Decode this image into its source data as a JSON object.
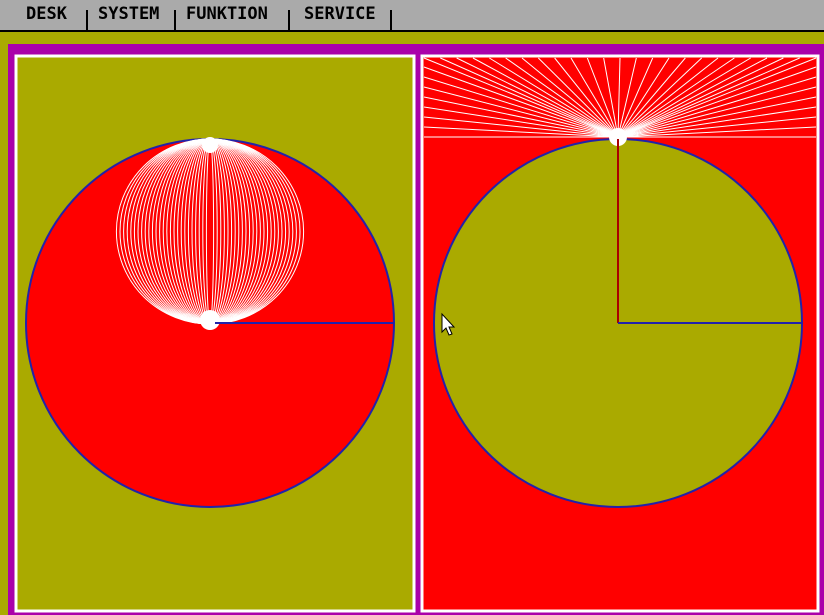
{
  "menubar": {
    "items": [
      "DESK",
      "SYSTEM",
      "FUNKTION",
      "SERVICE"
    ]
  },
  "colors": {
    "desktop": "#aaaa00",
    "window_frame": "#aa00aa",
    "red_fill": "#ff0000",
    "olive_fill": "#aaaa00",
    "line_white": "#ffffff",
    "line_blue": "#2222aa",
    "menubar_bg": "#aaaaaa"
  },
  "icons": {
    "cursor": "arrow-pointer-icon"
  }
}
